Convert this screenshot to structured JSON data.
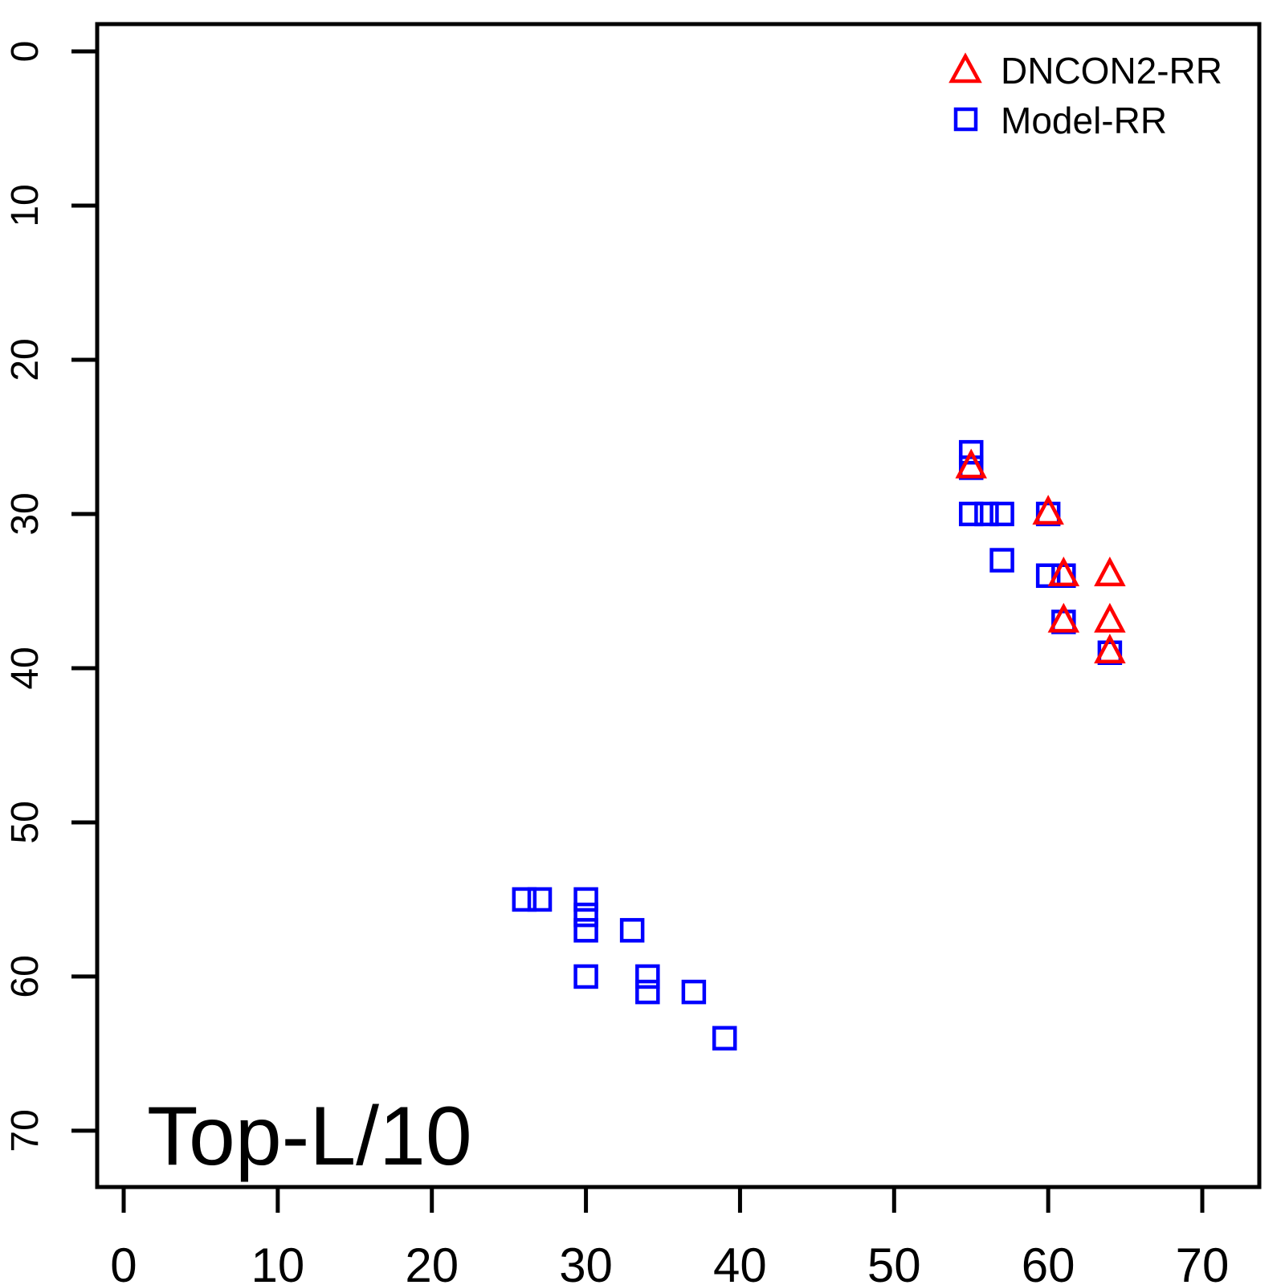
{
  "chart_data": {
    "type": "scatter",
    "title": "",
    "xlabel": "",
    "ylabel": "",
    "annotation": "Top-L/10",
    "x_ticks": [
      "0",
      "10",
      "20",
      "30",
      "40",
      "50",
      "60",
      "70"
    ],
    "y_ticks": [
      "0",
      "10",
      "20",
      "30",
      "40",
      "50",
      "60",
      "70"
    ],
    "x_tick_values": [
      0,
      10,
      20,
      30,
      40,
      50,
      60,
      70
    ],
    "y_tick_values": [
      0,
      10,
      20,
      30,
      40,
      50,
      60,
      70
    ],
    "xlim": [
      -1.72,
      73.7
    ],
    "ylim": [
      -1.77,
      73.65
    ],
    "y_axis_reversed": true,
    "grid": false,
    "legend_position": "top-right",
    "legend_box": false,
    "axis_color": "#000000",
    "background_color": "#ffffff",
    "series": [
      {
        "name": "DNCON2-RR",
        "marker": "open-triangle",
        "color": "#ff0000",
        "points": [
          [
            55,
            27
          ],
          [
            60,
            30
          ],
          [
            61,
            34
          ],
          [
            64,
            34
          ],
          [
            61,
            37
          ],
          [
            64,
            37
          ],
          [
            64,
            39
          ]
        ]
      },
      {
        "name": "Model-RR",
        "marker": "open-square",
        "color": "#0000ff",
        "points": [
          [
            55,
            26
          ],
          [
            55,
            27
          ],
          [
            55,
            30
          ],
          [
            56,
            30
          ],
          [
            57,
            30
          ],
          [
            60,
            30
          ],
          [
            57,
            33
          ],
          [
            60,
            34
          ],
          [
            61,
            34
          ],
          [
            61,
            37
          ],
          [
            64,
            39
          ],
          [
            26,
            55
          ],
          [
            27,
            55
          ],
          [
            30,
            55
          ],
          [
            30,
            56
          ],
          [
            30,
            57
          ],
          [
            33,
            57
          ],
          [
            30,
            60
          ],
          [
            34,
            60
          ],
          [
            34,
            61
          ],
          [
            37,
            61
          ],
          [
            39,
            64
          ]
        ]
      }
    ]
  }
}
